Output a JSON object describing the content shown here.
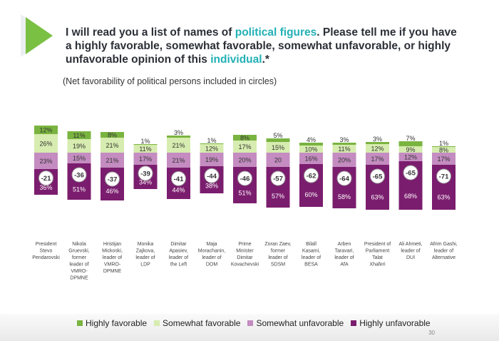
{
  "question": {
    "part1": "I will read you a list of names of ",
    "hl1": "political figures",
    "part2": ". Please tell me if you have a highly favorable, somewhat favorable, somewhat unfavorable, or highly unfavorable opinion of this ",
    "hl2": "individual",
    "part3": ".*"
  },
  "subtitle": "(Net favorability of political persons included in circles)",
  "page_number": "30",
  "colors": {
    "highly_favorable": "#7ab440",
    "somewhat_favorable": "#d7ecb0",
    "somewhat_unfavorable": "#c48cc0",
    "highly_unfavorable": "#7b1d6e",
    "accent": "#22b0b5",
    "chevron": "#7ac043"
  },
  "chart_data": {
    "type": "bar",
    "stacked": "diverging",
    "title": "",
    "categories": [
      [
        "President",
        "Stevo",
        "Pendarovski"
      ],
      [
        "Nikola",
        "Gruevski,",
        "former",
        "leader of",
        "VMRO-",
        "DPMNE"
      ],
      [
        "Hristijan",
        "Mickoski,",
        "leader of",
        "VMRO-",
        "DPMNE"
      ],
      [
        "Monika",
        "Zajkova,",
        "leader of",
        "LDP"
      ],
      [
        "Dimitar",
        "Apasiev,",
        "leader of",
        "the Left"
      ],
      [
        "Maja",
        "Morachanin,",
        "leader of",
        "DOM"
      ],
      [
        "Prime",
        "Minister",
        "Dimitar",
        "Kovachevski"
      ],
      [
        "Zoran Zaev,",
        "former",
        "leader of",
        "SDSM"
      ],
      [
        "Bilall",
        "Kasami,",
        "leader of",
        "BESA"
      ],
      [
        "Arben",
        "Taravari,",
        "leader of",
        "AfA"
      ],
      [
        "President of",
        "Parliament",
        "Talat",
        "Xhaferi"
      ],
      [
        "Ali Ahmeti,",
        "leader of",
        "DUI"
      ],
      [
        "Afrim Gashi,",
        "leader of",
        "Alternative"
      ]
    ],
    "series": [
      {
        "name": "Highly favorable",
        "key": "highly_favorable",
        "values": [
          12,
          11,
          8,
          1,
          3,
          1,
          8,
          5,
          4,
          3,
          3,
          7,
          1
        ],
        "labels": [
          "12%",
          "11%",
          "8%",
          "1%",
          "3%",
          "1%",
          "8%",
          "5%",
          "4%",
          "3%",
          "3%",
          "7%",
          "1%"
        ]
      },
      {
        "name": "Somewhat favorable",
        "key": "somewhat_favorable",
        "values": [
          26,
          19,
          21,
          11,
          21,
          12,
          17,
          15,
          10,
          11,
          12,
          9,
          8
        ],
        "labels": [
          "26%",
          "19%",
          "21%",
          "11%",
          "21%",
          "12%",
          "17%",
          "15%",
          "10%",
          "11%",
          "12%",
          "9%",
          "8%"
        ]
      },
      {
        "name": "Somewhat unfavorable",
        "key": "somewhat_unfavorable",
        "values": [
          23,
          15,
          21,
          17,
          21,
          19,
          20,
          20,
          16,
          20,
          17,
          12,
          17
        ],
        "labels": [
          "23%",
          "15%",
          "21%",
          "17%",
          "21%",
          "19%",
          "20%",
          "20",
          "16%",
          "20%",
          "17%",
          "12%",
          "17%"
        ]
      },
      {
        "name": "Highly unfavorable",
        "key": "highly_unfavorable",
        "values": [
          36,
          51,
          46,
          34,
          44,
          38,
          51,
          57,
          60,
          58,
          63,
          68,
          63
        ],
        "labels": [
          "36%",
          "51%",
          "46%",
          "34%",
          "44%",
          "38%",
          "51%",
          "57%",
          "60%",
          "58%",
          "63%",
          "68%",
          "63%"
        ]
      }
    ],
    "net": [
      "-21",
      "-36",
      "-37",
      "-39",
      "-41",
      "-44",
      "-46",
      "-57",
      "-62",
      "-64",
      "-65",
      "-65",
      "-71"
    ],
    "legend_position": "bottom",
    "grid": false
  }
}
